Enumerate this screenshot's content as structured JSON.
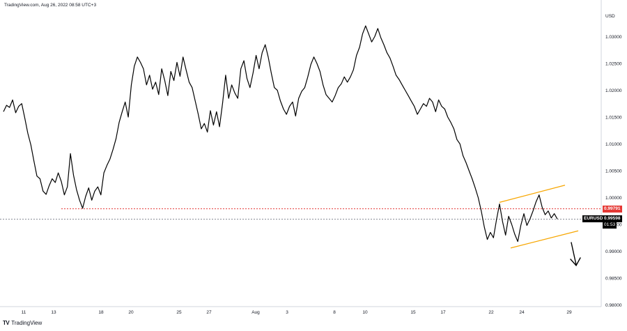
{
  "header": {
    "watermark": "TradingView.com, Aug 26, 2022 08:58 UTC+3"
  },
  "footer": {
    "logo_text": "TradingView"
  },
  "labels": {
    "currency": "USD",
    "symbol": "EURUSD",
    "last_price": "0.99598",
    "countdown": "01:53",
    "resistance_price": "0.99791"
  },
  "colors": {
    "price_line": "#000000",
    "resistance": "#e53935",
    "channel": "#f7a600",
    "last_price_line": "#787b86",
    "resistance_tag_bg": "#e53935",
    "symbol_tag_bg": "#000000"
  },
  "chart_data": {
    "type": "line",
    "title": "",
    "xlabel": "",
    "ylabel": "",
    "y_ticks": [
      "1.03000",
      "1.02500",
      "1.02000",
      "1.01500",
      "1.01000",
      "1.00500",
      "1.00000",
      "0.99500",
      "0.99000",
      "0.98500",
      "0.98000"
    ],
    "x_ticks": [
      "11",
      "13",
      "18",
      "20",
      "25",
      "27",
      "Aug",
      "3",
      "8",
      "10",
      "15",
      "17",
      "22",
      "24",
      "29"
    ],
    "ylim": [
      0.98,
      1.0325
    ],
    "grid": false,
    "series": [
      {
        "values": [
          1.016,
          1.0172,
          1.0168,
          1.0182,
          1.0158,
          1.017,
          1.0175,
          1.0148,
          1.012,
          1.0098,
          1.0068,
          1.004,
          1.0035,
          1.0012,
          1.0006,
          1.0022,
          1.0035,
          1.0028,
          1.0046,
          1.003,
          1.0005,
          1.002,
          1.0082,
          1.0042,
          1.0015,
          0.9995,
          0.998,
          1.0002,
          1.0018,
          0.9995,
          1.0012,
          1.002,
          1.0005,
          1.0046,
          1.006,
          1.0072,
          1.009,
          1.011,
          1.014,
          1.016,
          1.0178,
          1.015,
          1.021,
          1.0245,
          1.0262,
          1.0252,
          1.024,
          1.021,
          1.0228,
          1.0202,
          1.0215,
          1.0192,
          1.024,
          1.0218,
          1.019,
          1.0235,
          1.0218,
          1.0252,
          1.0226,
          1.0262,
          1.0238,
          1.0215,
          1.0205,
          1.018,
          1.0155,
          1.0128,
          1.0138,
          1.0122,
          1.0162,
          1.0135,
          1.016,
          1.0132,
          1.0176,
          1.0228,
          1.0185,
          1.021,
          1.0195,
          1.0185,
          1.024,
          1.0255,
          1.0222,
          1.0205,
          1.0232,
          1.0265,
          1.024,
          1.027,
          1.0285,
          1.0262,
          1.0232,
          1.0205,
          1.02,
          1.018,
          1.0165,
          1.0155,
          1.017,
          1.0178,
          1.0152,
          1.0185,
          1.0198,
          1.0205,
          1.0225,
          1.0248,
          1.0262,
          1.025,
          1.0235,
          1.021,
          1.0192,
          1.0185,
          1.0178,
          1.019,
          1.0205,
          1.0212,
          1.0225,
          1.0215,
          1.0225,
          1.0238,
          1.0265,
          1.028,
          1.0305,
          1.032,
          1.0305,
          1.029,
          1.03,
          1.0315,
          1.0298,
          1.0285,
          1.027,
          1.026,
          1.0245,
          1.0228,
          1.022,
          1.021,
          1.02,
          1.019,
          1.018,
          1.017,
          1.0155,
          1.0165,
          1.0175,
          1.017,
          1.0185,
          1.0178,
          1.016,
          1.0182,
          1.017,
          1.0165,
          1.015,
          1.014,
          1.0128,
          1.0108,
          1.01,
          1.0078,
          1.0065,
          1.005,
          1.0035,
          1.0018,
          1.0,
          0.9975,
          0.9945,
          0.9922,
          0.9935,
          0.9925,
          0.9958,
          0.9988,
          0.9955,
          0.993,
          0.9965,
          0.995,
          0.9932,
          0.9918,
          0.9948,
          0.997,
          0.9948,
          0.996,
          0.9975,
          0.9992,
          1.0005,
          0.9982,
          0.9968,
          0.9975,
          0.9962,
          0.997,
          0.996
        ]
      }
    ],
    "annotations": {
      "resistance_level": 0.99791,
      "last_price": 0.99598,
      "channel_upper": [
        0.9991,
        1.0023
      ],
      "channel_lower": [
        0.9906,
        0.9938
      ],
      "arrow_direction": "down"
    }
  }
}
